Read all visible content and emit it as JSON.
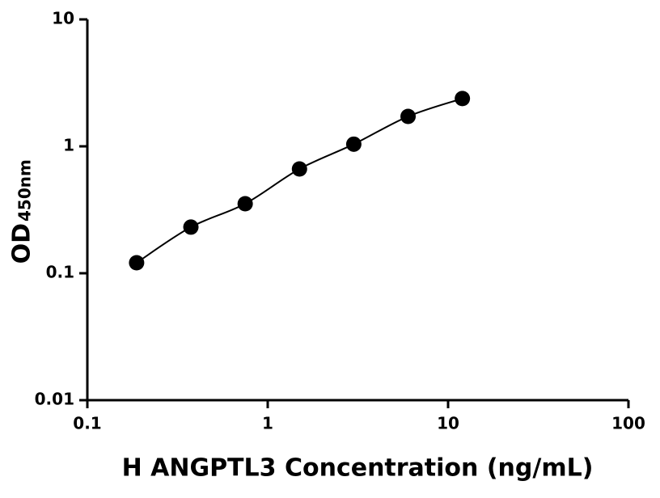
{
  "chart_data": {
    "type": "scatter",
    "x_label": "H ANGPTL3 Concentration (ng/mL)",
    "y_label": "OD",
    "y_label_sub": "450nm",
    "x": [
      0.1875,
      0.375,
      0.75,
      1.5,
      3,
      6,
      12
    ],
    "series": [
      {
        "color": "#000000",
        "values": [
          0.121,
          0.231,
          0.353,
          0.663,
          1.04,
          1.72,
          2.38
        ]
      }
    ],
    "xlim": [
      0.1,
      100
    ],
    "xticks": [
      0.1,
      1,
      10,
      100
    ],
    "ylim": [
      0.01,
      10
    ],
    "yticks": [
      0.01,
      0.1,
      1,
      10
    ],
    "xscale": "log",
    "yscale": "log",
    "fit_curve": true
  }
}
